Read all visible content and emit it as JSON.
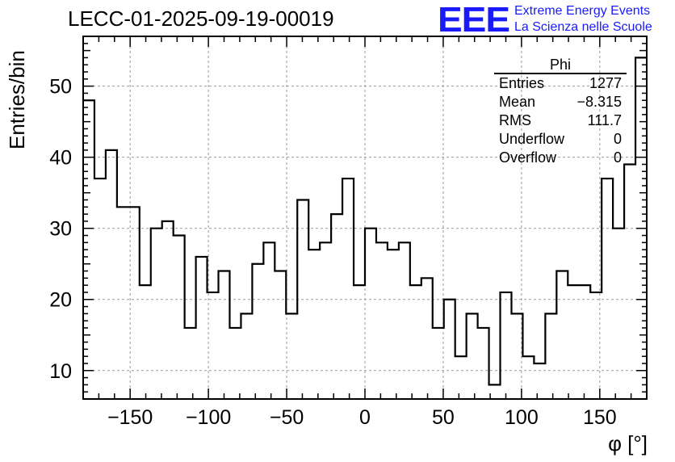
{
  "header": {
    "title": "LECC-01-2025-09-19-00019",
    "logo_mark": "EEE",
    "logo_line1": "Extreme Energy Events",
    "logo_line2": "La Scienza nelle Scuole"
  },
  "stats_box": {
    "name": "Phi",
    "rows": [
      {
        "label": "Entries",
        "value": "1277"
      },
      {
        "label": "Mean",
        "value": "−8.315"
      },
      {
        "label": "RMS",
        "value": "111.7"
      },
      {
        "label": "Underflow",
        "value": "0"
      },
      {
        "label": "Overflow",
        "value": "0"
      }
    ]
  },
  "colors": {
    "logo": "#1a1aff",
    "line": "#000000",
    "grid": "#999999"
  },
  "chart_data": {
    "type": "histogram",
    "title": "LECC-01-2025-09-19-00019",
    "xlabel": "φ [°]",
    "ylabel": "Entries/bin",
    "xlim": [
      -180,
      180
    ],
    "ylim": [
      6,
      57
    ],
    "bin_width": 7.2,
    "xticks": [
      -150,
      -100,
      -50,
      0,
      50,
      100,
      150
    ],
    "xtick_labels": [
      "−150",
      "−100",
      "−50",
      "0",
      "50",
      "100",
      "150"
    ],
    "yticks": [
      10,
      20,
      30,
      40,
      50
    ],
    "ytick_labels": [
      "10",
      "20",
      "30",
      "40",
      "50"
    ],
    "grid": true,
    "values": [
      48,
      37,
      41,
      33,
      33,
      22,
      30,
      31,
      29,
      16,
      26,
      21,
      24,
      16,
      18,
      25,
      28,
      24,
      18,
      34,
      27,
      28,
      32,
      37,
      22,
      30,
      28,
      27,
      28,
      22,
      23,
      16,
      20,
      12,
      18,
      16,
      8,
      21,
      18,
      12,
      11,
      18,
      24,
      22,
      22,
      21,
      37,
      30,
      39,
      54
    ]
  }
}
